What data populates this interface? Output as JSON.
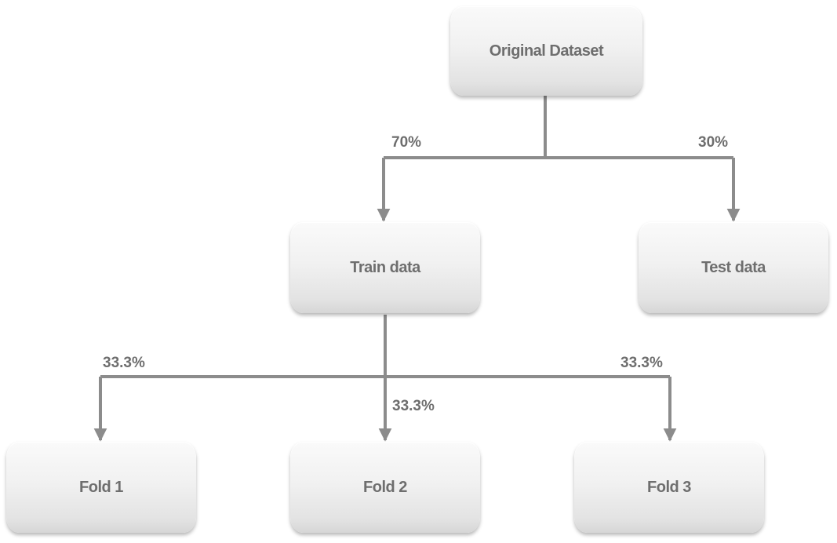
{
  "nodes": {
    "original": "Original Dataset",
    "train": "Train data",
    "test": "Test data",
    "fold1": "Fold 1",
    "fold2": "Fold 2",
    "fold3": "Fold 3"
  },
  "edges": {
    "to_train": "70%",
    "to_test": "30%",
    "to_fold1": "33.3%",
    "to_fold2": "33.3%",
    "to_fold3": "33.3%"
  },
  "colors": {
    "connector": "#8c8c8c",
    "text": "#6e6e6e"
  }
}
